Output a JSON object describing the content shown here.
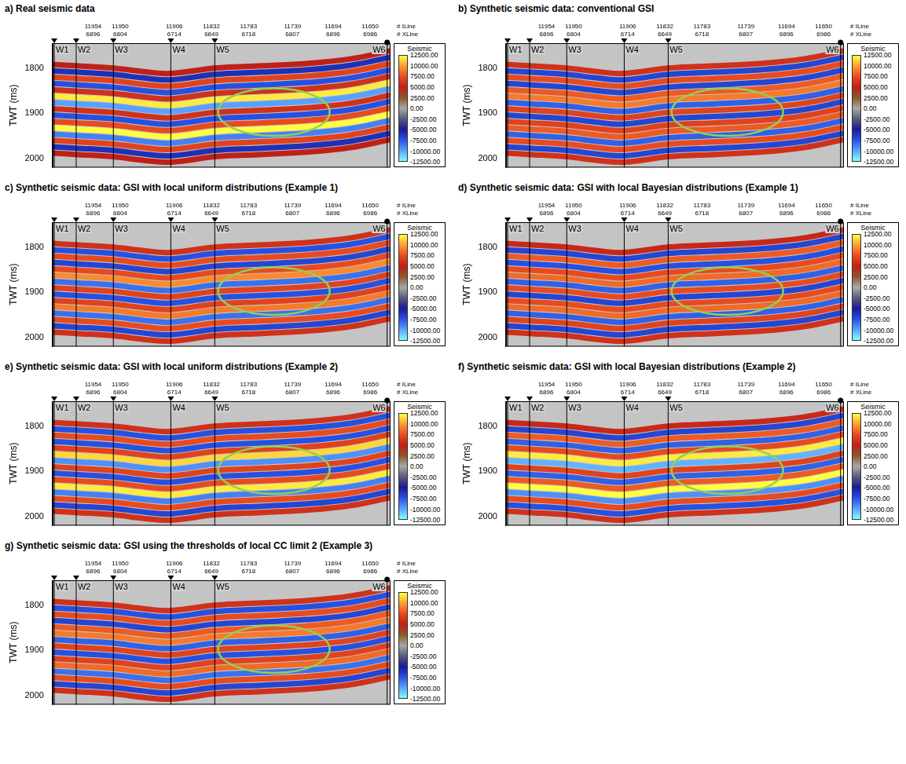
{
  "section": {
    "x": [
      0,
      7,
      18,
      27,
      35,
      48,
      62,
      75,
      88,
      100
    ],
    "xlim": [
      0,
      100
    ],
    "ylim": [
      1745,
      2020
    ],
    "yticks": [
      1800,
      1900,
      2000
    ],
    "y_label": "TWT (ms)",
    "tick_labels": "y",
    "grid": false,
    "horizons": [
      [
        1792,
        1795,
        1800,
        1808,
        1812,
        1800,
        1795,
        1790,
        1780,
        1762
      ],
      [
        1806,
        1809,
        1814,
        1822,
        1826,
        1814,
        1809,
        1804,
        1794,
        1776
      ],
      [
        1820,
        1823,
        1828,
        1836,
        1840,
        1828,
        1823,
        1818,
        1808,
        1790
      ],
      [
        1834,
        1837,
        1842,
        1850,
        1854,
        1842,
        1837,
        1832,
        1822,
        1804
      ],
      [
        1848,
        1851,
        1856,
        1864,
        1868,
        1856,
        1851,
        1846,
        1836,
        1818
      ],
      [
        1862,
        1865,
        1870,
        1878,
        1882,
        1870,
        1865,
        1860,
        1850,
        1832
      ],
      [
        1876,
        1879,
        1884,
        1892,
        1896,
        1884,
        1879,
        1874,
        1864,
        1846
      ],
      [
        1890,
        1893,
        1898,
        1906,
        1910,
        1898,
        1893,
        1888,
        1878,
        1860
      ],
      [
        1904,
        1907,
        1912,
        1920,
        1924,
        1912,
        1907,
        1902,
        1892,
        1874
      ],
      [
        1918,
        1921,
        1926,
        1934,
        1938,
        1926,
        1921,
        1916,
        1906,
        1888
      ],
      [
        1932,
        1935,
        1940,
        1948,
        1952,
        1940,
        1935,
        1930,
        1920,
        1902
      ],
      [
        1946,
        1949,
        1954,
        1962,
        1966,
        1954,
        1949,
        1944,
        1934,
        1916
      ],
      [
        1960,
        1963,
        1968,
        1976,
        1980,
        1968,
        1963,
        1958,
        1948,
        1930
      ],
      [
        1974,
        1977,
        1982,
        1990,
        1994,
        1982,
        1977,
        1972,
        1962,
        1944
      ],
      [
        1988,
        1991,
        1996,
        2004,
        2008,
        1996,
        1991,
        1986,
        1976,
        1958
      ]
    ],
    "wells": [
      {
        "name": "W1",
        "x": 0.5,
        "marker": "triangle"
      },
      {
        "name": "W2",
        "x": 7,
        "marker": "triangle"
      },
      {
        "name": "W3",
        "x": 18,
        "marker": "triangle"
      },
      {
        "name": "W4",
        "x": 35,
        "marker": "triangle"
      },
      {
        "name": "W5",
        "x": 48,
        "marker": "triangle"
      },
      {
        "name": "W6",
        "x": 99,
        "marker": "circle"
      }
    ],
    "line_labels": {
      "iline": "# ILine",
      "xline": "# XLine"
    },
    "locations": [
      {
        "x": 12,
        "iline": 11954,
        "xline": 6896
      },
      {
        "x": 20,
        "iline": 11950,
        "xline": 6804
      },
      {
        "x": 36,
        "iline": 11906,
        "xline": 6714
      },
      {
        "x": 47,
        "iline": 11832,
        "xline": 6649
      },
      {
        "x": 58,
        "iline": 11783,
        "xline": 6718
      },
      {
        "x": 71,
        "iline": 11739,
        "xline": 6807
      },
      {
        "x": 83,
        "iline": 11694,
        "xline": 6896
      },
      {
        "x": 94,
        "iline": 11650,
        "xline": 6986
      }
    ],
    "highlight": {
      "x": [
        49,
        82
      ],
      "twt": [
        1845,
        1950
      ],
      "color": "#92d050"
    },
    "colorbar": {
      "title": "Seismic",
      "range": [
        -12500,
        12500
      ],
      "ticks": [
        {
          "value": 12500,
          "label": "12500.00"
        },
        {
          "value": 10000,
          "label": "10000.00"
        },
        {
          "value": 7500,
          "label": "7500.00"
        },
        {
          "value": 5000,
          "label": "5000.00"
        },
        {
          "value": 2500,
          "label": "2500.00"
        },
        {
          "value": 0,
          "label": "0.00"
        },
        {
          "value": -2500,
          "label": "-2500.00"
        },
        {
          "value": -5000,
          "label": "-5000.00"
        },
        {
          "value": -7500,
          "label": "-7500.00"
        },
        {
          "value": -10000,
          "label": "-10000.00"
        },
        {
          "value": -12500,
          "label": "-12500.00"
        }
      ],
      "colors": [
        "#80ffff",
        "#5aa0ff",
        "#2850e0",
        "#1a1a9a",
        "#5a5a7a",
        "#a8a8a8",
        "#8a5a2a",
        "#c02018",
        "#e84a20",
        "#ff9a30",
        "#ffff40"
      ]
    }
  },
  "chart_data": [
    {
      "type": "line",
      "title": "a) Real seismic data",
      "amplitudes": [
        5000,
        -6000,
        7000,
        -7500,
        6000,
        12000,
        -10000,
        6000,
        -7500,
        7500,
        12500,
        -9000,
        7000,
        -6000,
        5000
      ]
    },
    {
      "type": "line",
      "title": "b) Synthetic seismic data: conventional GSI",
      "amplitudes": [
        6000,
        -7000,
        7500,
        -7000,
        8000,
        9000,
        -8000,
        7000,
        -7000,
        7000,
        8000,
        -8000,
        7500,
        -7000,
        6000
      ]
    },
    {
      "type": "line",
      "title": "c) Synthetic seismic data: GSI with local uniform distributions (Example 1)",
      "amplitudes": [
        6000,
        -7500,
        7500,
        -7000,
        7500,
        9500,
        -8500,
        7000,
        -7500,
        7000,
        9000,
        -8500,
        7500,
        -7000,
        6000
      ]
    },
    {
      "type": "line",
      "title": "d) Synthetic seismic data: GSI with local Bayesian distributions (Example 1)",
      "amplitudes": [
        5500,
        -7000,
        8000,
        -7500,
        7500,
        8500,
        -8000,
        7500,
        -7000,
        7500,
        8500,
        -8000,
        7000,
        -7000,
        6000
      ]
    },
    {
      "type": "line",
      "title": "e) Synthetic seismic data: GSI with local uniform distributions (Example 2)",
      "amplitudes": [
        6000,
        -7500,
        7500,
        -7500,
        7000,
        11500,
        -9500,
        7000,
        -7500,
        7500,
        12000,
        -9000,
        7500,
        -7000,
        6000
      ]
    },
    {
      "type": "line",
      "title": "f) Synthetic seismic data: GSI with local Bayesian distributions (Example 2)",
      "amplitudes": [
        5500,
        -7000,
        8000,
        -8000,
        7500,
        12000,
        -10500,
        7000,
        -8000,
        8000,
        12500,
        -9500,
        7500,
        -7500,
        6000
      ]
    },
    {
      "type": "line",
      "title": "g) Synthetic seismic data: GSI using the thresholds of local CC limit 2 (Example 3)",
      "amplitudes": [
        6000,
        -7500,
        7500,
        -7000,
        8000,
        9000,
        -8000,
        7000,
        -7500,
        7000,
        8500,
        -8500,
        7500,
        -7000,
        6000
      ]
    }
  ]
}
